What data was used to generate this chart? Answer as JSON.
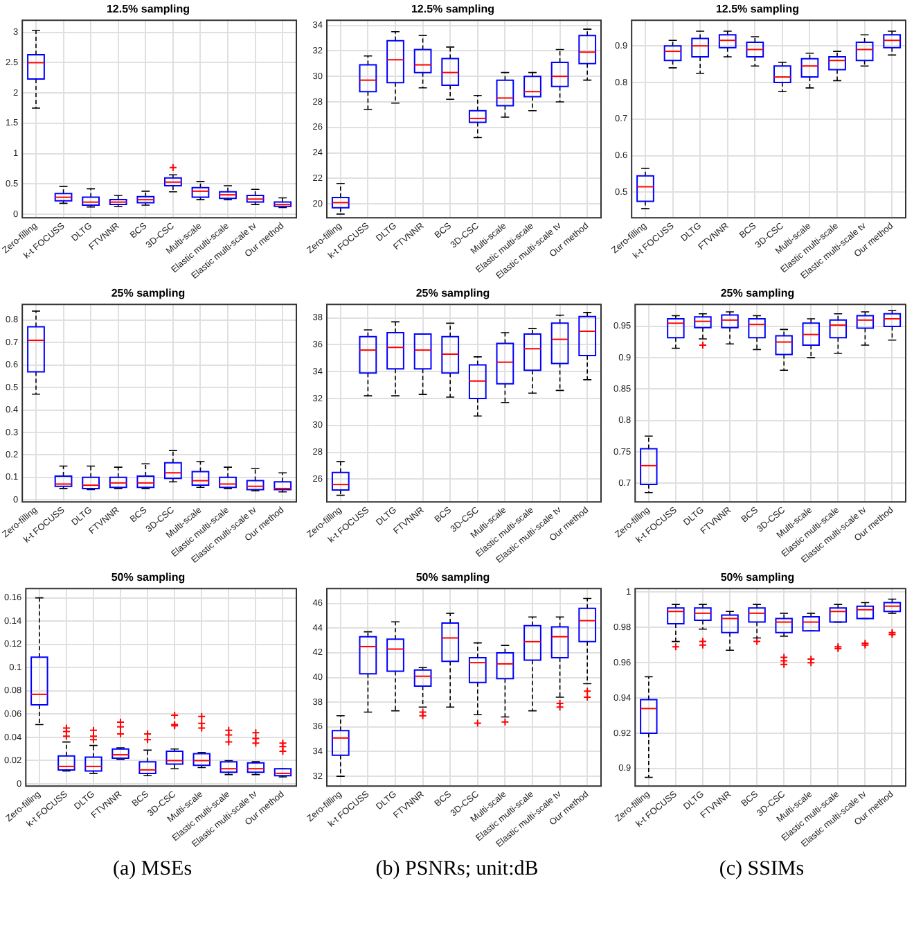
{
  "chart_data": [
    {
      "type": "box",
      "title": "12.5% sampling",
      "categories": [
        "Zero-filling",
        "k-t FOCUSS",
        "DLTG",
        "FTVNNR",
        "BCS",
        "3D-CSC",
        "Multi-scale",
        "Elastic multi-scale",
        "Elastic multi-scale tv",
        "Our method"
      ],
      "color": "#0000ff",
      "grid": true,
      "ylim": [
        -0.06,
        3.2
      ],
      "yticks": [
        0,
        0.5,
        1,
        1.5,
        2,
        2.5,
        3
      ],
      "boxes": [
        {
          "low": 1.75,
          "q1": 2.23,
          "median": 2.5,
          "q3": 2.63,
          "high": 3.03
        },
        {
          "low": 0.18,
          "q1": 0.22,
          "median": 0.28,
          "q3": 0.34,
          "high": 0.46
        },
        {
          "low": 0.12,
          "q1": 0.15,
          "median": 0.2,
          "q3": 0.28,
          "high": 0.42
        },
        {
          "low": 0.13,
          "q1": 0.16,
          "median": 0.2,
          "q3": 0.24,
          "high": 0.31
        },
        {
          "low": 0.15,
          "q1": 0.19,
          "median": 0.24,
          "q3": 0.29,
          "high": 0.38
        },
        {
          "low": 0.37,
          "q1": 0.47,
          "median": 0.53,
          "q3": 0.6,
          "high": 0.65,
          "outliers": [
            0.77
          ]
        },
        {
          "low": 0.24,
          "q1": 0.28,
          "median": 0.38,
          "q3": 0.44,
          "high": 0.54
        },
        {
          "low": 0.24,
          "q1": 0.26,
          "median": 0.32,
          "q3": 0.37,
          "high": 0.47
        },
        {
          "low": 0.16,
          "q1": 0.2,
          "median": 0.25,
          "q3": 0.31,
          "high": 0.41
        },
        {
          "low": 0.11,
          "q1": 0.13,
          "median": 0.16,
          "q3": 0.2,
          "high": 0.27
        }
      ]
    },
    {
      "type": "box",
      "title": "12.5% sampling",
      "categories": [
        "Zero-filling",
        "k-t FOCUSS",
        "DLTG",
        "FTVNNR",
        "BCS",
        "3D-CSC",
        "Multi-scale",
        "Elastic multi-scale",
        "Elastic multi-scale tv",
        "Our method"
      ],
      "color": "#0000ff",
      "grid": true,
      "ylim": [
        18.9,
        34.4
      ],
      "yticks": [
        20,
        22,
        24,
        26,
        28,
        30,
        32,
        34
      ],
      "boxes": [
        {
          "low": 19.2,
          "q1": 19.7,
          "median": 20.1,
          "q3": 20.5,
          "high": 21.6
        },
        {
          "low": 27.4,
          "q1": 28.8,
          "median": 29.7,
          "q3": 30.9,
          "high": 31.6
        },
        {
          "low": 27.9,
          "q1": 29.5,
          "median": 31.3,
          "q3": 32.8,
          "high": 33.5
        },
        {
          "low": 29.1,
          "q1": 30.3,
          "median": 30.9,
          "q3": 32.1,
          "high": 33.2
        },
        {
          "low": 28.2,
          "q1": 29.3,
          "median": 30.3,
          "q3": 31.4,
          "high": 32.3
        },
        {
          "low": 25.2,
          "q1": 26.4,
          "median": 26.7,
          "q3": 27.3,
          "high": 28.5
        },
        {
          "low": 26.8,
          "q1": 27.7,
          "median": 28.3,
          "q3": 29.7,
          "high": 30.3
        },
        {
          "low": 27.3,
          "q1": 28.4,
          "median": 28.8,
          "q3": 30,
          "high": 30.3
        },
        {
          "low": 28,
          "q1": 29.2,
          "median": 30,
          "q3": 31.1,
          "high": 32.1
        },
        {
          "low": 29.7,
          "q1": 31,
          "median": 31.9,
          "q3": 33.2,
          "high": 33.7
        }
      ]
    },
    {
      "type": "box",
      "title": "12.5% sampling",
      "categories": [
        "Zero-filling",
        "k-t FOCUSS",
        "DLTG",
        "FTVNNR",
        "BCS",
        "3D-CSC",
        "Multi-scale",
        "Elastic multi-scale",
        "Elastic multi-scale tv",
        "Our method"
      ],
      "color": "#0000ff",
      "grid": true,
      "ylim": [
        0.43,
        0.97
      ],
      "yticks": [
        0.5,
        0.6,
        0.7,
        0.8,
        0.9
      ],
      "boxes": [
        {
          "low": 0.455,
          "q1": 0.475,
          "median": 0.515,
          "q3": 0.545,
          "high": 0.565
        },
        {
          "low": 0.84,
          "q1": 0.86,
          "median": 0.885,
          "q3": 0.9,
          "high": 0.915
        },
        {
          "low": 0.825,
          "q1": 0.87,
          "median": 0.9,
          "q3": 0.92,
          "high": 0.94
        },
        {
          "low": 0.87,
          "q1": 0.895,
          "median": 0.915,
          "q3": 0.93,
          "high": 0.94
        },
        {
          "low": 0.845,
          "q1": 0.87,
          "median": 0.89,
          "q3": 0.91,
          "high": 0.925
        },
        {
          "low": 0.775,
          "q1": 0.8,
          "median": 0.815,
          "q3": 0.845,
          "high": 0.855
        },
        {
          "low": 0.785,
          "q1": 0.815,
          "median": 0.845,
          "q3": 0.865,
          "high": 0.88
        },
        {
          "low": 0.805,
          "q1": 0.835,
          "median": 0.86,
          "q3": 0.87,
          "high": 0.885
        },
        {
          "low": 0.845,
          "q1": 0.86,
          "median": 0.89,
          "q3": 0.91,
          "high": 0.93
        },
        {
          "low": 0.875,
          "q1": 0.895,
          "median": 0.915,
          "q3": 0.93,
          "high": 0.94
        }
      ]
    },
    {
      "type": "box",
      "title": "25% sampling",
      "categories": [
        "Zero-filling",
        "k-t FOCUSS",
        "DLTG",
        "FTVNNR",
        "BCS",
        "3D-CSC",
        "Multi-scale",
        "Elastic multi-scale",
        "Elastic multi-scale tv",
        "Our method"
      ],
      "color": "#0000ff",
      "grid": true,
      "ylim": [
        -0.01,
        0.87
      ],
      "yticks": [
        0,
        0.1,
        0.2,
        0.3,
        0.4,
        0.5,
        0.6,
        0.7,
        0.8
      ],
      "boxes": [
        {
          "low": 0.47,
          "q1": 0.57,
          "median": 0.71,
          "q3": 0.77,
          "high": 0.84
        },
        {
          "low": 0.05,
          "q1": 0.06,
          "median": 0.07,
          "q3": 0.105,
          "high": 0.15
        },
        {
          "low": 0.045,
          "q1": 0.05,
          "median": 0.065,
          "q3": 0.1,
          "high": 0.15
        },
        {
          "low": 0.05,
          "q1": 0.055,
          "median": 0.075,
          "q3": 0.1,
          "high": 0.145
        },
        {
          "low": 0.05,
          "q1": 0.055,
          "median": 0.075,
          "q3": 0.105,
          "high": 0.16
        },
        {
          "low": 0.08,
          "q1": 0.095,
          "median": 0.12,
          "q3": 0.165,
          "high": 0.22
        },
        {
          "low": 0.055,
          "q1": 0.065,
          "median": 0.085,
          "q3": 0.125,
          "high": 0.17
        },
        {
          "low": 0.05,
          "q1": 0.055,
          "median": 0.07,
          "q3": 0.1,
          "high": 0.145
        },
        {
          "low": 0.04,
          "q1": 0.045,
          "median": 0.06,
          "q3": 0.085,
          "high": 0.14
        },
        {
          "low": 0.035,
          "q1": 0.045,
          "median": 0.05,
          "q3": 0.08,
          "high": 0.12
        }
      ]
    },
    {
      "type": "box",
      "title": "25% sampling",
      "categories": [
        "Zero-filling",
        "k-t FOCUSS",
        "DLTG",
        "FTVNNR",
        "BCS",
        "3D-CSC",
        "Multi-scale",
        "Elastic multi-scale",
        "Elastic multi-scale tv",
        "Our method"
      ],
      "color": "#0000ff",
      "grid": true,
      "ylim": [
        24.3,
        39
      ],
      "yticks": [
        26,
        28,
        30,
        32,
        34,
        36,
        38
      ],
      "boxes": [
        {
          "low": 24.8,
          "q1": 25.2,
          "median": 25.6,
          "q3": 26.5,
          "high": 27.3
        },
        {
          "low": 32.2,
          "q1": 33.9,
          "median": 35.6,
          "q3": 36.6,
          "high": 37.1
        },
        {
          "low": 32.2,
          "q1": 34.2,
          "median": 35.8,
          "q3": 36.9,
          "high": 37.7
        },
        {
          "low": 32.3,
          "q1": 34.2,
          "median": 35.6,
          "q3": 36.8,
          "high": 36.8
        },
        {
          "low": 32.1,
          "q1": 33.9,
          "median": 35.3,
          "q3": 36.6,
          "high": 37.6
        },
        {
          "low": 30.7,
          "q1": 32,
          "median": 33.3,
          "q3": 34.5,
          "high": 35.1
        },
        {
          "low": 31.7,
          "q1": 33.1,
          "median": 34.7,
          "q3": 36.1,
          "high": 36.9
        },
        {
          "low": 32.4,
          "q1": 34.1,
          "median": 35.7,
          "q3": 36.8,
          "high": 37.2
        },
        {
          "low": 32.6,
          "q1": 34.6,
          "median": 36.4,
          "q3": 37.6,
          "high": 38.2
        },
        {
          "low": 33.4,
          "q1": 35.2,
          "median": 37,
          "q3": 38.1,
          "high": 38.4
        }
      ]
    },
    {
      "type": "box",
      "title": "25% sampling",
      "categories": [
        "Zero-filling",
        "k-t FOCUSS",
        "DLTG",
        "FTVNNR",
        "BCS",
        "3D-CSC",
        "Multi-scale",
        "Elastic multi-scale",
        "Elastic multi-scale tv",
        "Our method"
      ],
      "color": "#0000ff",
      "grid": true,
      "ylim": [
        0.67,
        0.985
      ],
      "yticks": [
        0.7,
        0.75,
        0.8,
        0.85,
        0.9,
        0.95
      ],
      "boxes": [
        {
          "low": 0.685,
          "q1": 0.698,
          "median": 0.728,
          "q3": 0.755,
          "high": 0.775
        },
        {
          "low": 0.915,
          "q1": 0.932,
          "median": 0.955,
          "q3": 0.962,
          "high": 0.967
        },
        {
          "low": 0.93,
          "q1": 0.948,
          "median": 0.958,
          "q3": 0.965,
          "high": 0.97,
          "outliers": [
            0.92
          ]
        },
        {
          "low": 0.922,
          "q1": 0.948,
          "median": 0.96,
          "q3": 0.968,
          "high": 0.973
        },
        {
          "low": 0.913,
          "q1": 0.932,
          "median": 0.953,
          "q3": 0.962,
          "high": 0.967
        },
        {
          "low": 0.88,
          "q1": 0.905,
          "median": 0.925,
          "q3": 0.935,
          "high": 0.945
        },
        {
          "low": 0.9,
          "q1": 0.92,
          "median": 0.937,
          "q3": 0.955,
          "high": 0.962
        },
        {
          "low": 0.907,
          "q1": 0.932,
          "median": 0.952,
          "q3": 0.96,
          "high": 0.97
        },
        {
          "low": 0.92,
          "q1": 0.947,
          "median": 0.96,
          "q3": 0.967,
          "high": 0.973
        },
        {
          "low": 0.928,
          "q1": 0.95,
          "median": 0.962,
          "q3": 0.97,
          "high": 0.975
        }
      ]
    },
    {
      "type": "box",
      "title": "50% sampling",
      "categories": [
        "Zero-filling",
        "k-t FOCUSS",
        "DLTG",
        "FTVNNR",
        "BCS",
        "3D-CSC",
        "Multi-scale",
        "Elastic multi-scale",
        "Elastic multi-scale tv",
        "Our method"
      ],
      "color": "#0000ff",
      "grid": true,
      "ylim": [
        -0.002,
        0.168
      ],
      "yticks": [
        0,
        0.02,
        0.04,
        0.06,
        0.08,
        0.1,
        0.12,
        0.14,
        0.16
      ],
      "annotations": [
        "(a) MSEs"
      ],
      "boxes": [
        {
          "low": 0.051,
          "q1": 0.068,
          "median": 0.077,
          "q3": 0.109,
          "high": 0.16
        },
        {
          "low": 0.011,
          "q1": 0.012,
          "median": 0.015,
          "q3": 0.024,
          "high": 0.036,
          "outliers": [
            0.041,
            0.045,
            0.048
          ]
        },
        {
          "low": 0.009,
          "q1": 0.011,
          "median": 0.015,
          "q3": 0.023,
          "high": 0.033,
          "outliers": [
            0.038,
            0.041,
            0.046
          ]
        },
        {
          "low": 0.021,
          "q1": 0.022,
          "median": 0.025,
          "q3": 0.03,
          "high": 0.031,
          "outliers": [
            0.043,
            0.049,
            0.053
          ]
        },
        {
          "low": 0.007,
          "q1": 0.009,
          "median": 0.012,
          "q3": 0.019,
          "high": 0.029,
          "outliers": [
            0.038,
            0.043
          ]
        },
        {
          "low": 0.013,
          "q1": 0.017,
          "median": 0.02,
          "q3": 0.028,
          "high": 0.03,
          "outliers": [
            0.05,
            0.051,
            0.059
          ]
        },
        {
          "low": 0.014,
          "q1": 0.016,
          "median": 0.02,
          "q3": 0.026,
          "high": 0.027,
          "outliers": [
            0.048,
            0.052,
            0.058
          ]
        },
        {
          "low": 0.008,
          "q1": 0.01,
          "median": 0.013,
          "q3": 0.019,
          "high": 0.02,
          "outliers": [
            0.036,
            0.042,
            0.046
          ]
        },
        {
          "low": 0.008,
          "q1": 0.01,
          "median": 0.013,
          "q3": 0.018,
          "high": 0.019,
          "outliers": [
            0.035,
            0.039,
            0.044
          ]
        },
        {
          "low": 0.006,
          "q1": 0.007,
          "median": 0.009,
          "q3": 0.013,
          "high": 0.013,
          "outliers": [
            0.028,
            0.032,
            0.035
          ]
        }
      ]
    },
    {
      "type": "box",
      "title": "50% sampling",
      "categories": [
        "Zero-filling",
        "k-t FOCUSS",
        "DLTG",
        "FTVNNR",
        "BCS",
        "3D-CSC",
        "Multi-scale",
        "Elastic multi-scale",
        "Elastic multi-scale tv",
        "Our method"
      ],
      "color": "#0000ff",
      "grid": true,
      "ylim": [
        31.2,
        47.2
      ],
      "yticks": [
        32,
        34,
        36,
        38,
        40,
        42,
        44,
        46
      ],
      "annotations": [
        "(b) PSNRs; unit:dB"
      ],
      "boxes": [
        {
          "low": 32,
          "q1": 33.7,
          "median": 35.1,
          "q3": 35.7,
          "high": 36.9
        },
        {
          "low": 37.2,
          "q1": 40.3,
          "median": 42.5,
          "q3": 43.3,
          "high": 43.7
        },
        {
          "low": 37.3,
          "q1": 40.5,
          "median": 42.3,
          "q3": 43.1,
          "high": 44.5
        },
        {
          "low": 37.6,
          "q1": 39.3,
          "median": 40.1,
          "q3": 40.6,
          "high": 40.8,
          "outliers": [
            36.9,
            37.2
          ]
        },
        {
          "low": 37.6,
          "q1": 41.3,
          "median": 43.2,
          "q3": 44.4,
          "high": 45.2
        },
        {
          "low": 37,
          "q1": 39.6,
          "median": 41.2,
          "q3": 41.6,
          "high": 42.8,
          "outliers": [
            36.3
          ]
        },
        {
          "low": 36.8,
          "q1": 39.9,
          "median": 41.1,
          "q3": 42,
          "high": 42.6,
          "outliers": [
            36.4
          ]
        },
        {
          "low": 37.3,
          "q1": 41.4,
          "median": 42.9,
          "q3": 44.2,
          "high": 44.9
        },
        {
          "low": 38.4,
          "q1": 41.6,
          "median": 43.3,
          "q3": 44.1,
          "high": 44.9,
          "outliers": [
            37.6,
            37.9
          ]
        },
        {
          "low": 39.5,
          "q1": 42.9,
          "median": 44.6,
          "q3": 45.6,
          "high": 46.4,
          "outliers": [
            38.4,
            38.9
          ]
        }
      ]
    },
    {
      "type": "box",
      "title": "50% sampling",
      "categories": [
        "Zero-filling",
        "k-t FOCUSS",
        "DLTG",
        "FTVNNR",
        "BCS",
        "3D-CSC",
        "Multi-scale",
        "Elastic multi-scale",
        "Elastic multi-scale tv",
        "Our method"
      ],
      "color": "#0000ff",
      "grid": true,
      "ylim": [
        0.89,
        1.002
      ],
      "yticks": [
        0.9,
        0.92,
        0.94,
        0.96,
        0.98,
        1
      ],
      "annotations": [
        "(c) SSIMs"
      ],
      "boxes": [
        {
          "low": 0.895,
          "q1": 0.92,
          "median": 0.934,
          "q3": 0.939,
          "high": 0.952
        },
        {
          "low": 0.972,
          "q1": 0.982,
          "median": 0.989,
          "q3": 0.991,
          "high": 0.993,
          "outliers": [
            0.969
          ]
        },
        {
          "low": 0.979,
          "q1": 0.984,
          "median": 0.988,
          "q3": 0.991,
          "high": 0.993,
          "outliers": [
            0.97,
            0.972
          ]
        },
        {
          "low": 0.967,
          "q1": 0.977,
          "median": 0.985,
          "q3": 0.987,
          "high": 0.989
        },
        {
          "low": 0.974,
          "q1": 0.983,
          "median": 0.988,
          "q3": 0.991,
          "high": 0.993,
          "outliers": [
            0.972
          ]
        },
        {
          "low": 0.975,
          "q1": 0.977,
          "median": 0.983,
          "q3": 0.985,
          "high": 0.988,
          "outliers": [
            0.959,
            0.961,
            0.963
          ]
        },
        {
          "low": 0.978,
          "q1": 0.978,
          "median": 0.983,
          "q3": 0.986,
          "high": 0.988,
          "outliers": [
            0.96,
            0.962
          ]
        },
        {
          "low": 0.983,
          "q1": 0.983,
          "median": 0.989,
          "q3": 0.991,
          "high": 0.993,
          "outliers": [
            0.968,
            0.969
          ]
        },
        {
          "low": 0.985,
          "q1": 0.985,
          "median": 0.99,
          "q3": 0.992,
          "high": 0.994,
          "outliers": [
            0.97,
            0.971
          ]
        },
        {
          "low": 0.988,
          "q1": 0.989,
          "median": 0.992,
          "q3": 0.994,
          "high": 0.996,
          "outliers": [
            0.976,
            0.977
          ]
        }
      ]
    }
  ]
}
